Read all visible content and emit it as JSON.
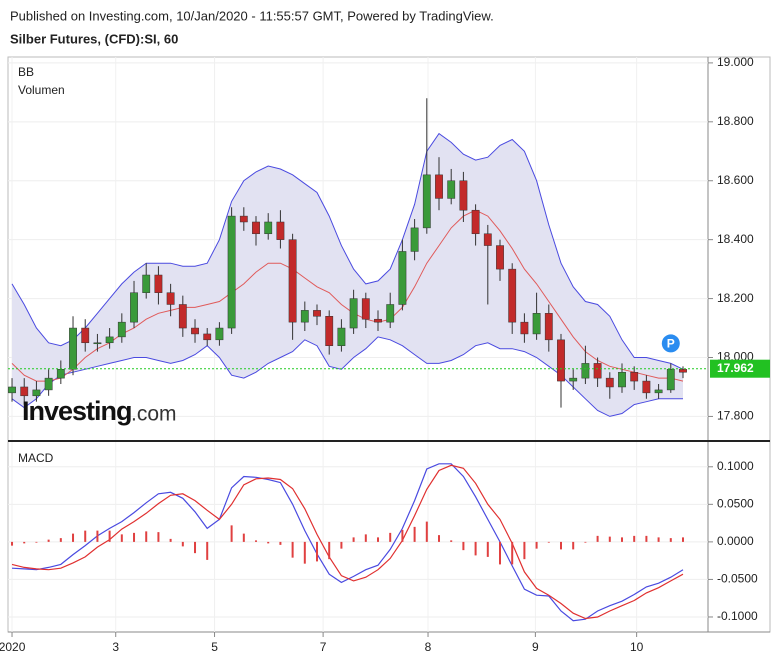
{
  "header": "Published on Investing.com, 10/Jan/2020 - 11:55:57 GMT, Powered by TradingView.",
  "chart_data": [
    {
      "type": "candlestick",
      "title": "Silber Futures, (CFD):SI, 60",
      "legend": [
        "BB",
        "Volumen"
      ],
      "logo": [
        "Investing",
        ".com"
      ],
      "marker_label": "P",
      "marker_index": 54,
      "xlim": [
        -0.33,
        57.05
      ],
      "xticks": [
        {
          "value": 0,
          "label": "2020"
        },
        {
          "value": 8.5,
          "label": "3"
        },
        {
          "value": 16.6,
          "label": "5"
        },
        {
          "value": 25.5,
          "label": "7"
        },
        {
          "value": 34.1,
          "label": "8"
        },
        {
          "value": 42.9,
          "label": "9"
        },
        {
          "value": 51.2,
          "label": "10"
        }
      ],
      "ylim": [
        17.72,
        19.02
      ],
      "yticks": [
        {
          "value": 17.8,
          "label": "17.800"
        },
        {
          "value": 18.0,
          "label": "18.000"
        },
        {
          "value": 18.2,
          "label": "18.200"
        },
        {
          "value": 18.4,
          "label": "18.400"
        },
        {
          "value": 18.6,
          "label": "18.600"
        },
        {
          "value": 18.8,
          "label": "18.800"
        },
        {
          "value": 19.0,
          "label": "19.000"
        }
      ],
      "last_price": 17.962,
      "up_color": "#3a9a3a",
      "down_color": "#c22a2a",
      "open": [
        17.88,
        17.9,
        17.87,
        17.89,
        17.93,
        17.96,
        18.1,
        18.05,
        18.05,
        18.07,
        18.12,
        18.22,
        18.28,
        18.22,
        18.18,
        18.1,
        18.08,
        18.06,
        18.1,
        18.48,
        18.46,
        18.42,
        18.46,
        18.4,
        18.12,
        18.16,
        18.14,
        18.04,
        18.1,
        18.2,
        18.13,
        18.12,
        18.18,
        18.36,
        18.44,
        18.62,
        18.54,
        18.6,
        18.5,
        18.42,
        18.38,
        18.3,
        18.12,
        18.08,
        18.15,
        18.06,
        17.92,
        17.93,
        17.98,
        17.93,
        17.9,
        17.95,
        17.92,
        17.88,
        17.89,
        17.96
      ],
      "high": [
        17.93,
        17.93,
        17.92,
        17.96,
        17.99,
        18.14,
        18.13,
        18.08,
        18.1,
        18.15,
        18.26,
        18.32,
        18.31,
        18.25,
        18.21,
        18.13,
        18.1,
        18.12,
        18.51,
        18.51,
        18.48,
        18.49,
        18.5,
        18.42,
        18.19,
        18.18,
        18.16,
        18.13,
        18.23,
        18.22,
        18.16,
        18.22,
        18.4,
        18.47,
        18.88,
        18.68,
        18.64,
        18.63,
        18.52,
        18.45,
        18.4,
        18.32,
        18.15,
        18.22,
        18.18,
        18.08,
        17.96,
        18.04,
        18.0,
        17.95,
        17.98,
        17.97,
        17.94,
        17.91,
        17.98,
        17.97
      ],
      "low": [
        17.85,
        17.84,
        17.85,
        17.87,
        17.91,
        17.94,
        18.02,
        18.02,
        18.03,
        18.05,
        18.1,
        18.2,
        18.18,
        18.14,
        18.07,
        18.05,
        18.04,
        18.04,
        18.08,
        18.43,
        18.38,
        18.4,
        18.37,
        18.06,
        18.09,
        18.11,
        18.01,
        18.02,
        18.08,
        18.1,
        18.09,
        18.1,
        18.16,
        18.33,
        18.42,
        18.5,
        18.52,
        18.46,
        18.38,
        18.18,
        18.26,
        18.08,
        18.05,
        18.06,
        18.02,
        17.83,
        17.89,
        17.91,
        17.9,
        17.86,
        17.88,
        17.89,
        17.86,
        17.86,
        17.88,
        17.93
      ],
      "close": [
        17.9,
        17.87,
        17.89,
        17.93,
        17.96,
        18.1,
        18.05,
        18.05,
        18.07,
        18.12,
        18.22,
        18.28,
        18.22,
        18.18,
        18.1,
        18.08,
        18.06,
        18.1,
        18.48,
        18.46,
        18.42,
        18.46,
        18.4,
        18.12,
        18.16,
        18.14,
        18.04,
        18.1,
        18.2,
        18.13,
        18.12,
        18.18,
        18.36,
        18.44,
        18.62,
        18.54,
        18.6,
        18.5,
        18.42,
        18.38,
        18.3,
        18.12,
        18.08,
        18.15,
        18.06,
        17.92,
        17.93,
        17.98,
        17.93,
        17.9,
        17.95,
        17.92,
        17.88,
        17.89,
        17.96,
        17.95
      ],
      "bands": {
        "color": "#4a4ae0",
        "fill": "#e2e2f2",
        "mid_color": "#e05a5a",
        "upper": [
          18.25,
          18.18,
          18.1,
          18.05,
          18.04,
          18.06,
          18.1,
          18.15,
          18.2,
          18.25,
          18.29,
          18.32,
          18.32,
          18.32,
          18.31,
          18.31,
          18.32,
          18.4,
          18.53,
          18.6,
          18.63,
          18.65,
          18.64,
          18.62,
          18.59,
          18.56,
          18.48,
          18.38,
          18.3,
          18.25,
          18.26,
          18.3,
          18.4,
          18.52,
          18.7,
          18.76,
          18.73,
          18.69,
          18.67,
          18.68,
          18.72,
          18.74,
          18.7,
          18.6,
          18.45,
          18.32,
          18.24,
          18.19,
          18.18,
          18.14,
          18.06,
          18.0,
          18.0,
          17.99,
          17.98,
          17.96
        ],
        "middle": [
          17.98,
          17.94,
          17.92,
          17.92,
          17.93,
          17.96,
          18.0,
          18.03,
          18.05,
          18.08,
          18.1,
          18.13,
          18.15,
          18.16,
          18.17,
          18.17,
          18.18,
          18.19,
          18.22,
          18.25,
          18.29,
          18.32,
          18.32,
          18.3,
          18.27,
          18.24,
          18.22,
          18.18,
          18.15,
          18.13,
          18.12,
          18.13,
          18.17,
          18.24,
          18.32,
          18.38,
          18.44,
          18.48,
          18.5,
          18.48,
          18.43,
          18.37,
          18.3,
          18.25,
          18.19,
          18.13,
          18.07,
          18.02,
          17.99,
          17.97,
          17.96,
          17.95,
          17.94,
          17.93,
          17.93,
          17.92
        ],
        "lower": [
          17.86,
          17.83,
          17.86,
          17.91,
          17.94,
          17.95,
          17.96,
          17.97,
          17.98,
          17.99,
          18.0,
          18.0,
          17.99,
          17.98,
          17.99,
          18.01,
          18.04,
          18.0,
          17.94,
          17.93,
          17.95,
          17.98,
          18.0,
          18.02,
          18.06,
          18.04,
          17.97,
          17.96,
          18.0,
          18.03,
          18.07,
          18.06,
          18.04,
          18.01,
          17.98,
          17.98,
          17.99,
          18.01,
          18.04,
          18.05,
          18.03,
          18.03,
          18.02,
          18.0,
          17.97,
          17.94,
          17.9,
          17.86,
          17.82,
          17.8,
          17.81,
          17.84,
          17.85,
          17.86,
          17.86,
          17.86
        ]
      }
    },
    {
      "type": "macd",
      "title": "MACD",
      "xlim": [
        -0.33,
        57.05
      ],
      "ylim": [
        -0.12,
        0.133
      ],
      "yticks": [
        {
          "value": -0.1,
          "label": "-0.1000"
        },
        {
          "value": -0.05,
          "label": "-0.0500"
        },
        {
          "value": 0,
          "label": "0.0000"
        },
        {
          "value": 0.05,
          "label": "0.0500"
        },
        {
          "value": 0.1,
          "label": "0.1000"
        }
      ],
      "series": [
        {
          "name": "MACD",
          "color": "#4a4ae0",
          "values": [
            -0.035,
            -0.036,
            -0.037,
            -0.034,
            -0.03,
            -0.017,
            -0.005,
            0.008,
            0.018,
            0.027,
            0.039,
            0.052,
            0.064,
            0.066,
            0.058,
            0.04,
            0.018,
            0.03,
            0.072,
            0.087,
            0.086,
            0.083,
            0.079,
            0.05,
            0.015,
            -0.016,
            -0.043,
            -0.054,
            -0.046,
            -0.037,
            -0.031,
            -0.01,
            0.018,
            0.055,
            0.097,
            0.104,
            0.104,
            0.087,
            0.06,
            0.03,
            0.0,
            -0.032,
            -0.063,
            -0.071,
            -0.072,
            -0.092,
            -0.105,
            -0.103,
            -0.092,
            -0.085,
            -0.079,
            -0.07,
            -0.06,
            -0.055,
            -0.047,
            -0.037
          ]
        },
        {
          "name": "Signal",
          "color": "#e03030",
          "values": [
            -0.03,
            -0.034,
            -0.036,
            -0.037,
            -0.035,
            -0.028,
            -0.02,
            -0.007,
            0.003,
            0.017,
            0.027,
            0.038,
            0.051,
            0.062,
            0.064,
            0.055,
            0.042,
            0.03,
            0.05,
            0.076,
            0.084,
            0.085,
            0.083,
            0.071,
            0.044,
            0.01,
            -0.02,
            -0.045,
            -0.052,
            -0.047,
            -0.037,
            -0.022,
            0.002,
            0.035,
            0.07,
            0.095,
            0.102,
            0.098,
            0.078,
            0.05,
            0.03,
            -0.002,
            -0.04,
            -0.062,
            -0.071,
            -0.082,
            -0.095,
            -0.102,
            -0.1,
            -0.092,
            -0.085,
            -0.078,
            -0.068,
            -0.061,
            -0.052,
            -0.043
          ]
        },
        {
          "name": "Histogram",
          "color": "#e04040",
          "values": [
            -0.005,
            -0.002,
            -0.001,
            0.003,
            0.005,
            0.011,
            0.015,
            0.015,
            0.015,
            0.01,
            0.012,
            0.014,
            0.013,
            0.004,
            -0.006,
            -0.015,
            -0.024,
            0.0,
            0.022,
            0.011,
            0.002,
            -0.002,
            -0.004,
            -0.021,
            -0.029,
            -0.026,
            -0.023,
            -0.009,
            0.006,
            0.01,
            0.006,
            0.012,
            0.016,
            0.02,
            0.027,
            0.009,
            0.002,
            -0.011,
            -0.018,
            -0.02,
            -0.03,
            -0.03,
            -0.023,
            -0.009,
            -0.001,
            -0.01,
            -0.01,
            -0.001,
            0.008,
            0.007,
            0.006,
            0.008,
            0.008,
            0.006,
            0.005,
            0.006
          ]
        }
      ]
    }
  ]
}
